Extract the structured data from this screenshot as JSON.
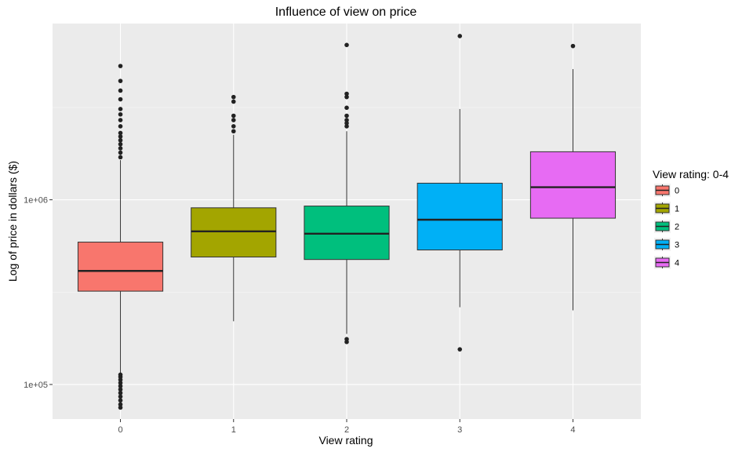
{
  "chart_data": {
    "type": "boxplot",
    "title": "Influence of view on price",
    "xlabel": "View rating",
    "ylabel": "Log of price in dollars ($)",
    "y_scale": "log10",
    "ylim": [
      65000,
      9000000
    ],
    "y_ticks": [
      {
        "value": 100000,
        "label": "1e+05"
      },
      {
        "value": 1000000,
        "label": "1e+06"
      }
    ],
    "categories": [
      "0",
      "1",
      "2",
      "3",
      "4"
    ],
    "grid": true,
    "legend": {
      "title": "View rating: 0-4",
      "placement": "right",
      "items": [
        {
          "label": "0",
          "color": "#F8766D"
        },
        {
          "label": "1",
          "color": "#A3A500"
        },
        {
          "label": "2",
          "color": "#00BF7D"
        },
        {
          "label": "3",
          "color": "#00B0F6"
        },
        {
          "label": "4",
          "color": "#E76BF3"
        }
      ]
    },
    "boxes": [
      {
        "name": "0",
        "color": "#F8766D",
        "whisker_low": 115000,
        "q1": 320000,
        "median": 412000,
        "q3": 590000,
        "whisker_high": 1640000,
        "outliers": [
          75000,
          78000,
          82000,
          86000,
          90000,
          94000,
          98000,
          102000,
          106000,
          110000,
          113000,
          1700000,
          1800000,
          1900000,
          2000000,
          2100000,
          2200000,
          2300000,
          2500000,
          2700000,
          2900000,
          3100000,
          3500000,
          3900000,
          4400000,
          5300000
        ]
      },
      {
        "name": "1",
        "color": "#A3A500",
        "whisker_low": 220000,
        "q1": 490000,
        "median": 675000,
        "q3": 905000,
        "whisker_high": 2250000,
        "outliers": [
          2350000,
          2500000,
          2700000,
          2850000,
          3400000,
          3600000
        ]
      },
      {
        "name": "2",
        "color": "#00BF7D",
        "whisker_low": 188000,
        "q1": 475000,
        "median": 655000,
        "q3": 925000,
        "whisker_high": 2350000,
        "outliers": [
          170000,
          176000,
          2500000,
          2600000,
          2700000,
          2850000,
          3150000,
          3600000,
          3750000,
          6890000
        ]
      },
      {
        "name": "3",
        "color": "#00B0F6",
        "whisker_low": 262000,
        "q1": 535000,
        "median": 780000,
        "q3": 1230000,
        "whisker_high": 3100000,
        "outliers": [
          155000,
          7700000
        ]
      },
      {
        "name": "4",
        "color": "#E76BF3",
        "whisker_low": 252000,
        "q1": 795000,
        "median": 1170000,
        "q3": 1820000,
        "whisker_high": 5100000,
        "outliers": [
          6800000
        ]
      }
    ]
  }
}
